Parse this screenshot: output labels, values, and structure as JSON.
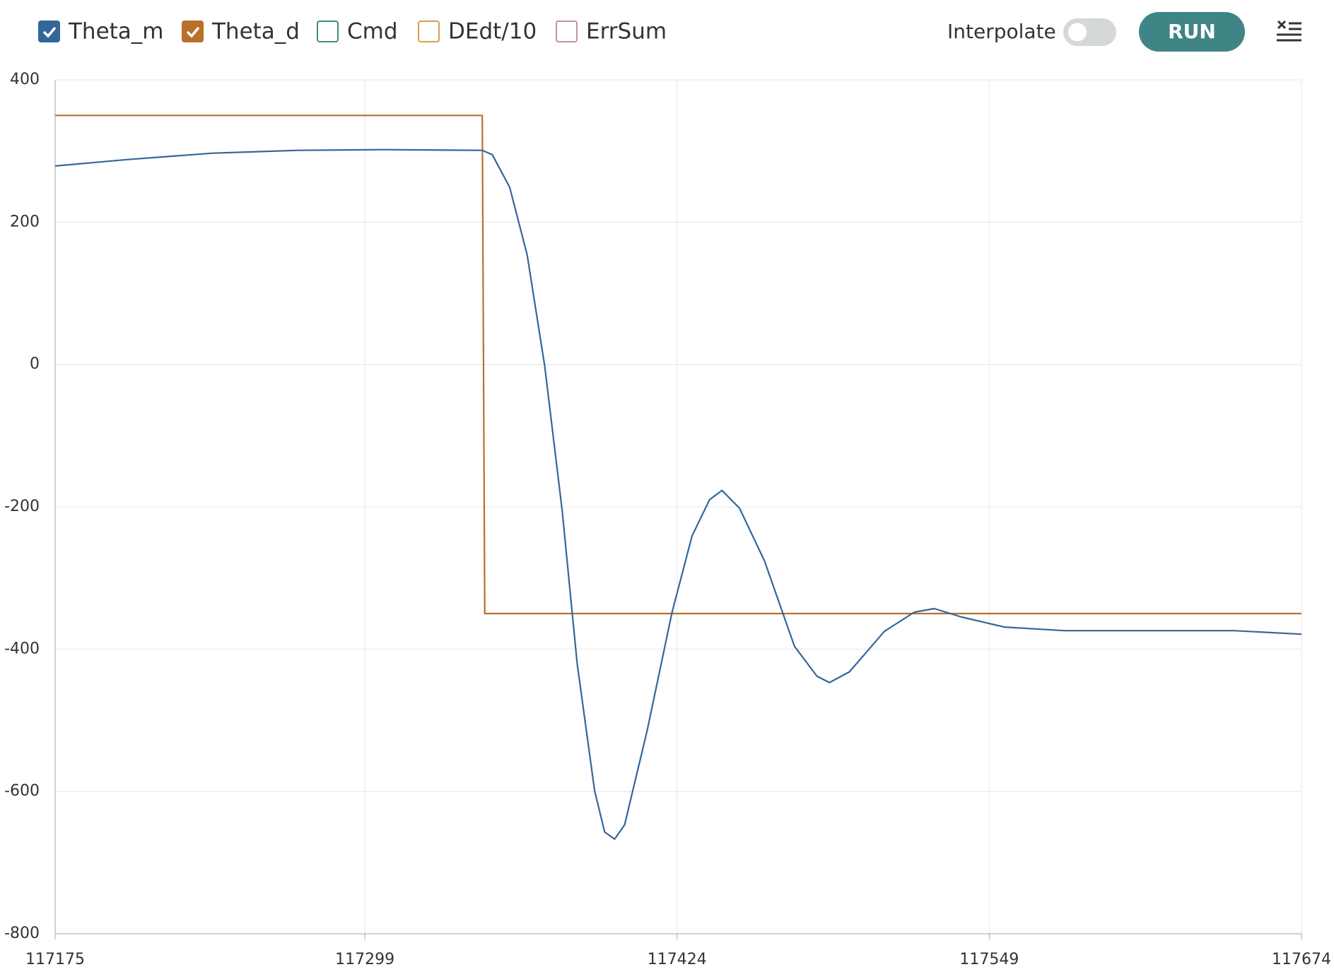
{
  "chart_data": {
    "type": "line",
    "series": [
      {
        "name": "Theta_m",
        "color": "#33679a",
        "visible": true,
        "x": [
          117175,
          117204,
          117238,
          117272,
          117306,
          117346,
          117350,
          117357,
          117364,
          117371,
          117378,
          117384,
          117391,
          117395,
          117399,
          117403,
          117412,
          117422,
          117430,
          117437,
          117442,
          117449,
          117459,
          117471,
          117480,
          117485,
          117493,
          117507,
          117519,
          117527,
          117538,
          117555,
          117579,
          117613,
          117647,
          117674
        ],
        "values": [
          279,
          288,
          297,
          301,
          302,
          301,
          295,
          249,
          154,
          -2,
          -205,
          -420,
          -599,
          -657,
          -667,
          -647,
          -515,
          -348,
          -241,
          -190,
          -177,
          -202,
          -276,
          -396,
          -438,
          -447,
          -432,
          -375,
          -348,
          -343,
          -355,
          -369,
          -374,
          -374,
          -374,
          -379
        ]
      },
      {
        "name": "Theta_d",
        "color": "#b8702c",
        "visible": true,
        "x": [
          117175,
          117346,
          117347,
          117674
        ],
        "values": [
          350,
          350,
          -350,
          -350
        ]
      },
      {
        "name": "Cmd",
        "color": "#3f8c75",
        "visible": false
      },
      {
        "name": "DEdt/10",
        "color": "#d6a24a",
        "visible": false
      },
      {
        "name": "ErrSum",
        "color": "#c48fb5",
        "visible": false
      }
    ],
    "xlim": [
      117175,
      117674
    ],
    "xticks": [
      117175,
      117299,
      117424,
      117549,
      117674
    ],
    "ylim": [
      -800,
      400
    ],
    "yticks": [
      -800,
      -600,
      -400,
      -200,
      0,
      200,
      400
    ],
    "grid": true
  },
  "controls": {
    "interpolate_label": "Interpolate",
    "interpolate": false,
    "run_label": "RUN"
  }
}
